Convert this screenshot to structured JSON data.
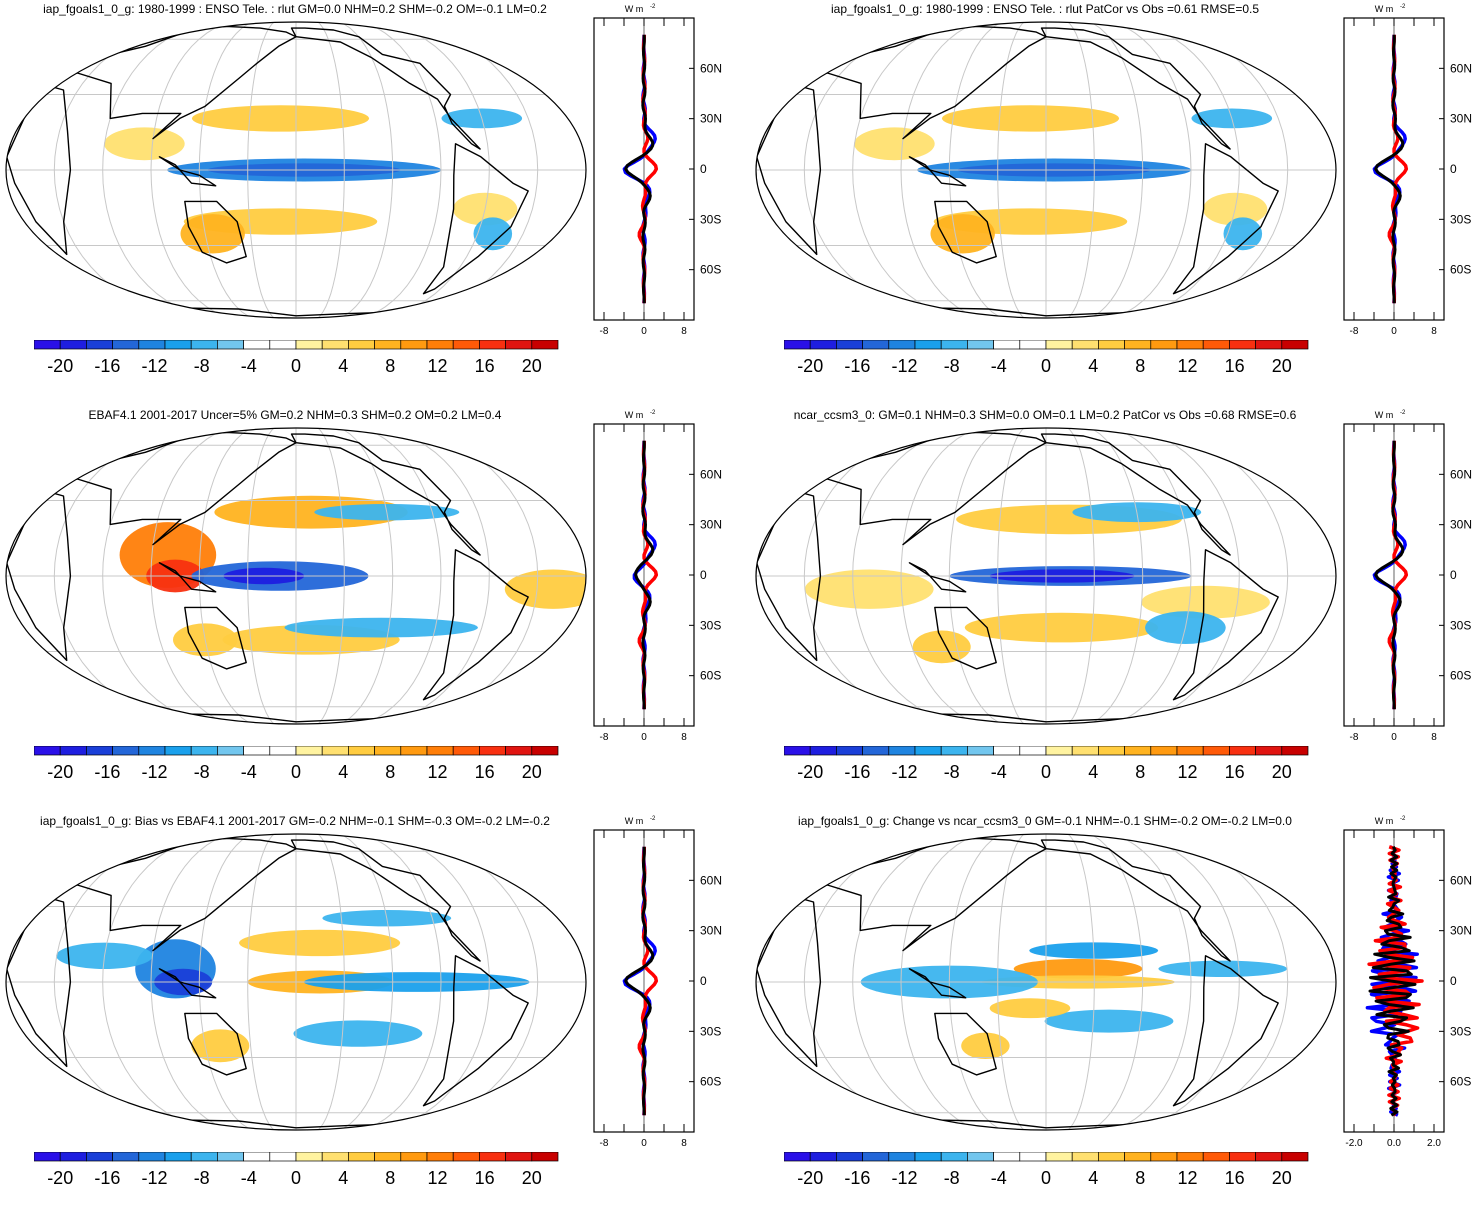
{
  "panels": [
    {
      "title": "iap_fgoals1_0_g: 1980-1999 : ENSO Tele. : rlut GM=0.0 NHM=0.2 SHM=-0.2 OM=-0.1 LM=0.2",
      "profile_ticks": [
        "-8",
        "0",
        "8"
      ],
      "profile_range": [
        -10,
        10
      ],
      "variant": "model"
    },
    {
      "title": "iap_fgoals1_0_g: 1980-1999 : ENSO Tele. : rlut PatCor vs Obs =0.61 RMSE=0.5",
      "profile_ticks": [
        "-8",
        "0",
        "8"
      ],
      "profile_range": [
        -10,
        10
      ],
      "variant": "model"
    },
    {
      "title": "EBAF4.1 2001-2017 Uncer=5% GM=0.2 NHM=0.3 SHM=0.2 OM=0.2 LM=0.4",
      "profile_ticks": [
        "-8",
        "0",
        "8"
      ],
      "profile_range": [
        -10,
        10
      ],
      "variant": "obs"
    },
    {
      "title": "ncar_ccsm3_0: GM=0.1 NHM=0.3 SHM=0.0 OM=0.1 LM=0.2 PatCor vs Obs =0.68 RMSE=0.6",
      "profile_ticks": [
        "-8",
        "0",
        "8"
      ],
      "profile_range": [
        -10,
        10
      ],
      "variant": "model2"
    },
    {
      "title": "iap_fgoals1_0_g: Bias vs EBAF4.1 2001-2017 GM=-0.2 NHM=-0.1 SHM=-0.3 OM=-0.2 LM=-0.2",
      "profile_ticks": [
        "-8",
        "0",
        "8"
      ],
      "profile_range": [
        -10,
        10
      ],
      "variant": "bias"
    },
    {
      "title": "iap_fgoals1_0_g: Change vs ncar_ccsm3_0 GM=-0.1 NHM=-0.1 SHM=-0.2 OM=-0.2 LM=0.0",
      "profile_ticks": [
        "-2.0",
        "0.0",
        "2.0"
      ],
      "profile_range": [
        -2.5,
        2.5
      ],
      "variant": "change"
    }
  ],
  "units_label": "W m",
  "units_exp": "-2",
  "lat_labels": [
    "60N",
    "30N",
    "0",
    "30S",
    "60S"
  ],
  "colorbar": {
    "labels": [
      "-20",
      "-16",
      "-12",
      "-8",
      "-4",
      "0",
      "4",
      "8",
      "12",
      "16",
      "20"
    ],
    "colors": [
      "#2a10e8",
      "#1e1ee0",
      "#1a3fd8",
      "#2366d8",
      "#1f84e0",
      "#1aa0ec",
      "#3cb4ee",
      "#72c6ee",
      "#ffffff",
      "#ffffff",
      "#fff3a0",
      "#ffe070",
      "#ffcc40",
      "#ffb320",
      "#ff9a10",
      "#ff7e08",
      "#ff5a08",
      "#f83010",
      "#e01410",
      "#c80000"
    ]
  },
  "profile_series": [
    {
      "color": "#0000ff"
    },
    {
      "color": "#ff0000"
    },
    {
      "color": "#000000"
    }
  ]
}
